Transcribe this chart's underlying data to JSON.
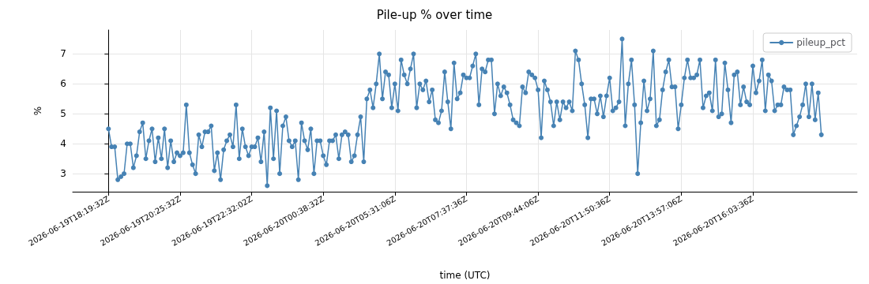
{
  "chart_data": {
    "type": "line",
    "title": "Pile-up % over time",
    "xlabel": "time (UTC)",
    "ylabel": "%",
    "categories": [
      "2026-06-19T18:19:32Z",
      null,
      null,
      null,
      null,
      null,
      null,
      null,
      null,
      null,
      null,
      null,
      null,
      null,
      null,
      null,
      null,
      null,
      null,
      null,
      null,
      null,
      null,
      "2026-06-19T20:25:32Z",
      null,
      null,
      null,
      null,
      null,
      null,
      null,
      null,
      null,
      null,
      null,
      null,
      null,
      null,
      null,
      null,
      null,
      null,
      null,
      null,
      null,
      null,
      "2026-06-19T22:32:02Z",
      null,
      null,
      null,
      null,
      null,
      null,
      null,
      null,
      null,
      null,
      null,
      null,
      null,
      null,
      null,
      null,
      null,
      null,
      null,
      null,
      null,
      null,
      "2026-06-20T00:38:32Z",
      null,
      null,
      null,
      null,
      null,
      null,
      null,
      null,
      null,
      null,
      null,
      null,
      null,
      null,
      null,
      null,
      null,
      null,
      null,
      null,
      null,
      null,
      "2026-06-20T05:31:06Z",
      null,
      null,
      null,
      null,
      null,
      null,
      null,
      null,
      null,
      null,
      null,
      null,
      null,
      null,
      null,
      null,
      null,
      null,
      null,
      null,
      null,
      null,
      "2026-06-20T07:37:36Z",
      null,
      null,
      null,
      null,
      null,
      null,
      null,
      null,
      null,
      null,
      null,
      null,
      null,
      null,
      null,
      null,
      null,
      null,
      null,
      null,
      null,
      null,
      "2026-06-20T09:44:06Z",
      null,
      null,
      null,
      null,
      null,
      null,
      null,
      null,
      null,
      null,
      null,
      null,
      null,
      null,
      null,
      null,
      null,
      null,
      null,
      null,
      null,
      null,
      "2026-06-20T11:50:36Z",
      null,
      null,
      null,
      null,
      null,
      null,
      null,
      null,
      null,
      null,
      null,
      null,
      null,
      null,
      null,
      null,
      null,
      null,
      null,
      null,
      null,
      null,
      "2026-06-20T13:57:06Z",
      null,
      null,
      null,
      null,
      null,
      null,
      null,
      null,
      null,
      null,
      null,
      null,
      null,
      null,
      null,
      null,
      null,
      null,
      null,
      null,
      null,
      null,
      "2026-06-20T16:03:36Z",
      null,
      null,
      null,
      null,
      null,
      null,
      null,
      null,
      null,
      null,
      null,
      null,
      null,
      null,
      null,
      null,
      null,
      null,
      null,
      null,
      null,
      null
    ],
    "series": [
      {
        "name": "pileup_pct",
        "color": "#4682b4",
        "values": [
          4.5,
          3.9,
          3.9,
          2.8,
          2.9,
          3.0,
          4.0,
          4.0,
          3.2,
          3.6,
          4.4,
          4.7,
          3.5,
          4.1,
          4.5,
          3.4,
          4.2,
          3.5,
          4.5,
          3.2,
          4.1,
          3.4,
          3.7,
          3.6,
          3.7,
          5.3,
          3.7,
          3.3,
          3.0,
          4.3,
          3.9,
          4.4,
          4.4,
          4.6,
          3.1,
          3.7,
          2.8,
          3.8,
          4.1,
          4.3,
          3.9,
          5.3,
          3.5,
          4.5,
          3.9,
          3.6,
          3.9,
          3.9,
          4.2,
          3.4,
          4.4,
          2.6,
          5.2,
          3.5,
          5.1,
          3.0,
          4.6,
          4.9,
          4.1,
          3.9,
          4.1,
          2.8,
          4.7,
          4.1,
          3.8,
          4.5,
          3.0,
          4.1,
          4.1,
          3.6,
          3.3,
          4.1,
          4.1,
          4.3,
          3.5,
          4.3,
          4.4,
          4.3,
          3.4,
          3.6,
          4.3,
          4.9,
          3.4,
          5.5,
          5.8,
          5.2,
          6.0,
          7.0,
          5.5,
          6.4,
          6.3,
          5.2,
          6.0,
          5.1,
          6.8,
          6.3,
          6.0,
          6.5,
          7.0,
          5.2,
          6.0,
          5.8,
          6.1,
          5.4,
          5.8,
          4.8,
          4.7,
          5.1,
          6.4,
          5.4,
          4.5,
          6.7,
          5.5,
          5.7,
          6.3,
          6.2,
          6.2,
          6.6,
          7.0,
          5.3,
          6.5,
          6.4,
          6.8,
          6.8,
          5.0,
          6.0,
          5.6,
          5.9,
          5.7,
          5.3,
          4.8,
          4.7,
          4.6,
          5.9,
          5.7,
          6.4,
          6.3,
          6.2,
          5.8,
          4.2,
          6.1,
          5.8,
          5.4,
          4.6,
          5.4,
          4.8,
          5.4,
          5.2,
          5.4,
          5.1,
          7.1,
          6.8,
          6.0,
          5.3,
          4.2,
          5.5,
          5.5,
          5.0,
          5.6,
          4.9,
          5.6,
          6.2,
          5.1,
          5.2,
          5.4,
          7.5,
          4.6,
          6.0,
          6.8,
          5.3,
          3.0,
          4.7,
          6.1,
          5.1,
          5.5,
          7.1,
          4.6,
          4.8,
          5.8,
          6.4,
          6.8,
          5.9,
          5.9,
          4.5,
          5.3,
          6.2,
          6.8,
          6.2,
          6.2,
          6.3,
          6.8,
          5.2,
          5.6,
          5.7,
          5.1,
          6.8,
          4.9,
          5.0,
          6.7,
          5.8,
          4.7,
          6.3,
          6.4,
          5.3,
          5.9,
          5.4,
          5.3,
          6.6,
          5.7,
          6.1,
          6.8,
          5.1,
          6.3,
          6.1,
          5.1,
          5.3,
          5.3,
          5.9,
          5.8,
          5.8,
          4.3,
          4.6,
          4.9,
          5.3,
          6.0,
          4.9,
          6.0,
          4.8,
          5.7,
          4.3
        ]
      }
    ],
    "ylim": [
      2.4,
      7.8
    ],
    "yticks": [
      3,
      4,
      5,
      6,
      7
    ],
    "grid": true,
    "legend": "top right",
    "marker": "circle",
    "line_style": "solid"
  }
}
